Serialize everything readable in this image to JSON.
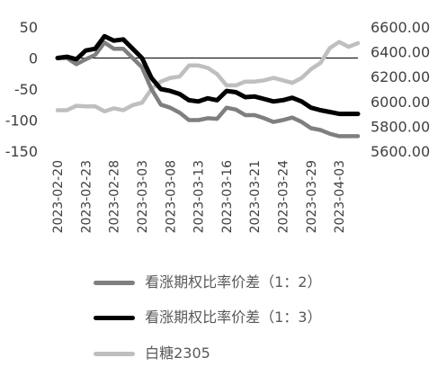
{
  "chart_data": {
    "type": "line",
    "x": [
      "2023-02-20",
      "2023-02-21",
      "2023-02-22",
      "2023-02-23",
      "2023-02-24",
      "2023-02-27",
      "2023-02-28",
      "2023-03-01",
      "2023-03-02",
      "2023-03-03",
      "2023-03-06",
      "2023-03-07",
      "2023-03-08",
      "2023-03-09",
      "2023-03-10",
      "2023-03-13",
      "2023-03-14",
      "2023-03-15",
      "2023-03-16",
      "2023-03-17",
      "2023-03-20",
      "2023-03-21",
      "2023-03-22",
      "2023-03-23",
      "2023-03-24",
      "2023-03-27",
      "2023-03-28",
      "2023-03-29",
      "2023-03-30",
      "2023-03-31",
      "2023-04-03",
      "2023-04-04",
      "2023-04-06"
    ],
    "x_tick_labels": [
      "2023-02-20",
      "2023-02-23",
      "2023-02-28",
      "2023-03-03",
      "2023-03-08",
      "2023-03-13",
      "2023-03-16",
      "2023-03-21",
      "2023-03-24",
      "2023-03-29",
      "2023-04-03"
    ],
    "y_left": {
      "ticks": [
        "50",
        "0",
        "-50",
        "-100",
        "-150"
      ],
      "range": [
        -150,
        50
      ]
    },
    "y_right": {
      "ticks": [
        "6600.00",
        "6400.00",
        "6200.00",
        "6000.00",
        "5800.00",
        "5600.00"
      ],
      "range": [
        5600,
        6600
      ]
    },
    "series": [
      {
        "name": "看涨期权比率价差（1：2）",
        "axis": "left",
        "color": "#7f7f7f",
        "values": [
          0,
          0,
          -10,
          -2,
          5,
          25,
          15,
          15,
          0,
          -15,
          -50,
          -75,
          -80,
          -88,
          -100,
          -100,
          -97,
          -98,
          -80,
          -83,
          -92,
          -92,
          -97,
          -103,
          -100,
          -96,
          -103,
          -113,
          -116,
          -122,
          -126,
          -126,
          -126
        ]
      },
      {
        "name": "看涨期权比率价差（1：3）",
        "axis": "left",
        "color": "#000000",
        "values": [
          0,
          2,
          -2,
          12,
          15,
          35,
          28,
          30,
          15,
          0,
          -32,
          -50,
          -53,
          -58,
          -68,
          -70,
          -65,
          -68,
          -53,
          -55,
          -63,
          -62,
          -66,
          -70,
          -68,
          -64,
          -70,
          -80,
          -84,
          -87,
          -90,
          -90,
          -90
        ]
      },
      {
        "name": "白糖2305",
        "axis": "right",
        "color": "#bfbfbf",
        "values": [
          5930,
          5930,
          5965,
          5960,
          5960,
          5920,
          5945,
          5930,
          5970,
          5990,
          6100,
          6160,
          6190,
          6200,
          6290,
          6290,
          6270,
          6220,
          6130,
          6130,
          6160,
          6160,
          6170,
          6190,
          6170,
          6150,
          6190,
          6260,
          6310,
          6430,
          6480,
          6440,
          6470
        ]
      }
    ]
  }
}
